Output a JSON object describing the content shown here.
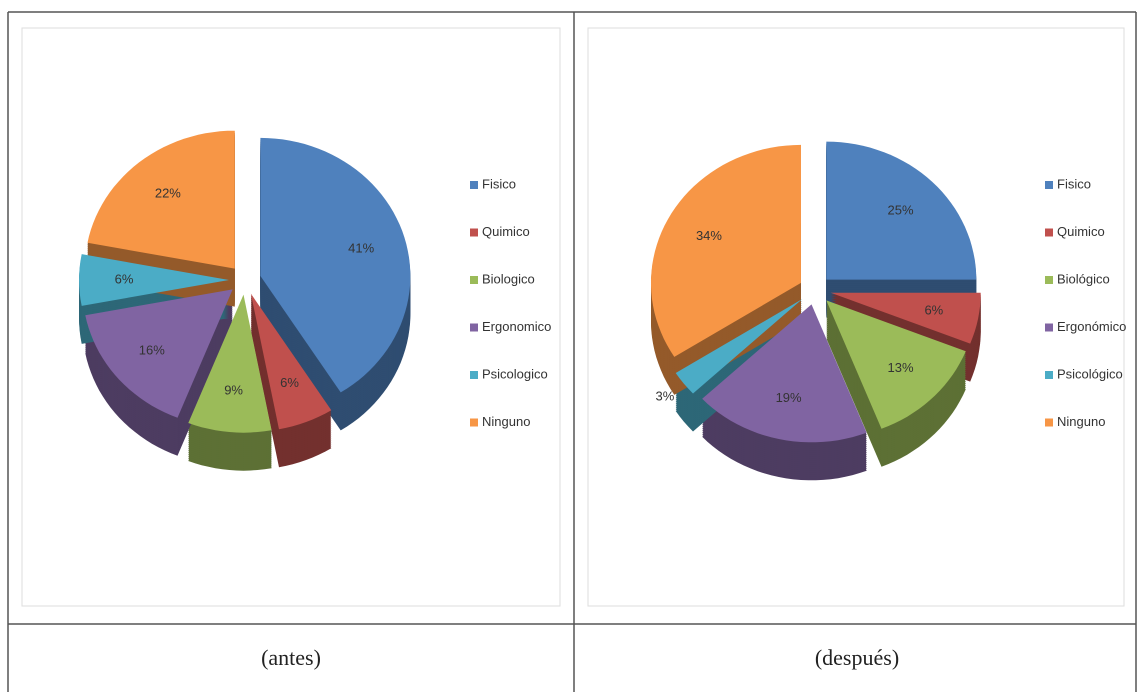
{
  "chart_data": [
    {
      "type": "pie",
      "categories": [
        "Fisico",
        "Quimico",
        "Biologico",
        "Ergonomico",
        "Psicologico",
        "Ninguno"
      ],
      "values": [
        41,
        6,
        9,
        16,
        6,
        22
      ],
      "value_labels": [
        "41%",
        "6%",
        "9%",
        "16%",
        "6%",
        "22%"
      ],
      "colors": [
        "#4f81bd",
        "#c0504d",
        "#9bbb59",
        "#8064a2",
        "#4bacc6",
        "#f79646"
      ],
      "legend": "right"
    },
    {
      "type": "pie",
      "categories": [
        "Fisico",
        "Quimico",
        "Biológico",
        "Ergonómico",
        "Psicológico",
        "Ninguno"
      ],
      "values": [
        25,
        6,
        13,
        19,
        3,
        34
      ],
      "value_labels": [
        "25%",
        "6%",
        "13%",
        "19%",
        "3%",
        "34%"
      ],
      "colors": [
        "#4f81bd",
        "#c0504d",
        "#9bbb59",
        "#8064a2",
        "#4bacc6",
        "#f79646"
      ],
      "legend": "right"
    }
  ],
  "captions": [
    "(antes)",
    "(después)"
  ]
}
